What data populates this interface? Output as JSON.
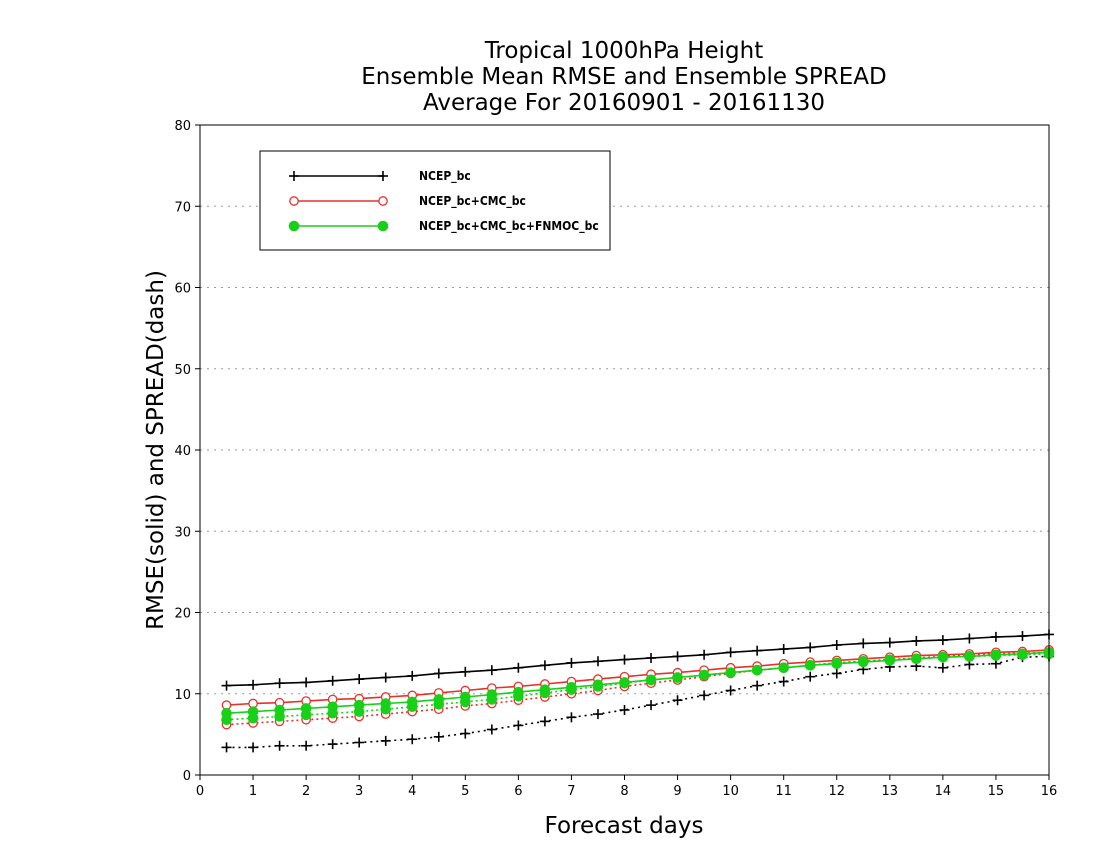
{
  "chart_data": {
    "type": "line",
    "title_lines": [
      "Tropical 1000hPa Height",
      "Ensemble Mean RMSE and Ensemble SPREAD",
      "Average For 20160901 - 20161130"
    ],
    "xlabel": "Forecast days",
    "ylabel": "RMSE(solid) and SPREAD(dash)",
    "xlim": [
      0,
      16
    ],
    "ylim": [
      0,
      80
    ],
    "xticks": [
      0,
      1,
      2,
      3,
      4,
      5,
      6,
      7,
      8,
      9,
      10,
      11,
      12,
      13,
      14,
      15,
      16
    ],
    "yticks": [
      0,
      10,
      20,
      30,
      40,
      50,
      60,
      70,
      80
    ],
    "grid": "horizontal dotted",
    "legend_position": "top-left",
    "x": [
      0.5,
      1,
      1.5,
      2,
      2.5,
      3,
      3.5,
      4,
      4.5,
      5,
      5.5,
      6,
      6.5,
      7,
      7.5,
      8,
      8.5,
      9,
      9.5,
      10,
      10.5,
      11,
      11.5,
      12,
      12.5,
      13,
      13.5,
      14,
      14.5,
      15,
      15.5,
      16
    ],
    "series": [
      {
        "name": "NCEP_bc",
        "color": "#000000",
        "marker": "plus",
        "rmse": [
          11.0,
          11.1,
          11.3,
          11.4,
          11.6,
          11.8,
          12.0,
          12.2,
          12.5,
          12.7,
          12.9,
          13.2,
          13.5,
          13.8,
          14.0,
          14.2,
          14.4,
          14.6,
          14.8,
          15.1,
          15.3,
          15.5,
          15.7,
          16.0,
          16.2,
          16.3,
          16.5,
          16.6,
          16.8,
          17.0,
          17.1,
          17.3
        ],
        "spread": [
          3.4,
          3.4,
          3.6,
          3.6,
          3.8,
          4.0,
          4.2,
          4.4,
          4.7,
          5.1,
          5.6,
          6.1,
          6.6,
          7.1,
          7.5,
          8.0,
          8.6,
          9.2,
          9.8,
          10.4,
          11.0,
          11.5,
          12.1,
          12.5,
          13.0,
          13.3,
          13.4,
          13.2,
          13.6,
          13.7,
          14.5,
          14.6
        ]
      },
      {
        "name": "NCEP_bc+CMC_bc",
        "color": "#e8312a",
        "marker": "open-circle",
        "rmse": [
          8.6,
          8.8,
          8.9,
          9.1,
          9.3,
          9.4,
          9.6,
          9.8,
          10.1,
          10.4,
          10.7,
          10.9,
          11.2,
          11.5,
          11.8,
          12.1,
          12.4,
          12.6,
          12.9,
          13.2,
          13.4,
          13.7,
          13.9,
          14.1,
          14.3,
          14.5,
          14.7,
          14.8,
          14.9,
          15.1,
          15.2,
          15.4
        ],
        "spread": [
          6.2,
          6.4,
          6.6,
          6.8,
          7.0,
          7.2,
          7.5,
          7.8,
          8.1,
          8.5,
          8.8,
          9.2,
          9.6,
          10.0,
          10.4,
          10.9,
          11.3,
          11.7,
          12.1,
          12.5,
          12.9,
          13.2,
          13.5,
          13.8,
          14.0,
          14.2,
          14.4,
          14.6,
          14.8,
          14.9,
          15.0,
          15.1
        ]
      },
      {
        "name": "NCEP_bc+CMC_bc+FNMOC_bc",
        "color": "#18d018",
        "marker": "filled-circle",
        "rmse": [
          7.6,
          7.8,
          8.0,
          8.2,
          8.4,
          8.6,
          8.8,
          9.0,
          9.3,
          9.6,
          9.9,
          10.2,
          10.5,
          10.8,
          11.1,
          11.4,
          11.7,
          12.0,
          12.3,
          12.6,
          12.9,
          13.2,
          13.5,
          13.7,
          13.9,
          14.1,
          14.3,
          14.5,
          14.6,
          14.8,
          14.9,
          15.1
        ],
        "spread": [
          6.8,
          7.0,
          7.2,
          7.4,
          7.6,
          7.8,
          8.1,
          8.4,
          8.7,
          9.0,
          9.3,
          9.7,
          10.1,
          10.5,
          10.9,
          11.3,
          11.7,
          12.0,
          12.3,
          12.6,
          12.9,
          13.2,
          13.5,
          13.8,
          14.0,
          14.2,
          14.3,
          14.5,
          14.6,
          14.7,
          14.8,
          14.9
        ]
      }
    ]
  }
}
